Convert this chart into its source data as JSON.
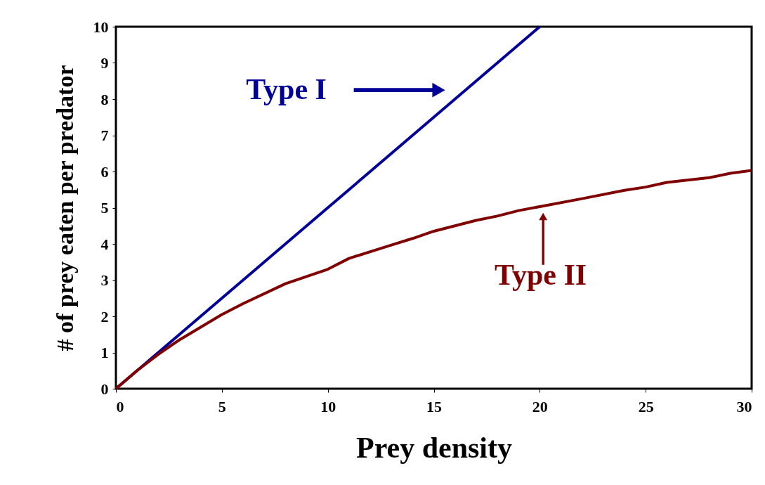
{
  "chart_data": {
    "type": "line",
    "xlabel": "Prey density",
    "ylabel": "# of prey eaten per predator",
    "xlim": [
      0,
      30
    ],
    "ylim": [
      0,
      10
    ],
    "xticks": [
      0,
      5,
      10,
      15,
      20,
      25,
      30
    ],
    "yticks": [
      0,
      1,
      2,
      3,
      4,
      5,
      6,
      7,
      8,
      9,
      10
    ],
    "grid": false,
    "legend": false,
    "marker": "none",
    "line_style": "solid",
    "series": [
      {
        "color": "#000099",
        "x": [
          0,
          1,
          2,
          3,
          5,
          10,
          15,
          20
        ],
        "values": [
          0,
          0.5,
          1,
          1.5,
          2.5,
          5,
          7.5,
          10
        ]
      },
      {
        "color": "#800000",
        "x": [
          0,
          1,
          2,
          3,
          5,
          6,
          8,
          10,
          11,
          13,
          14,
          15,
          17,
          18,
          19,
          20,
          22,
          24,
          25,
          26,
          28,
          29,
          30
        ],
        "values": [
          0,
          0.5,
          0.95,
          1.35,
          2.05,
          2.35,
          2.9,
          3.3,
          3.6,
          3.97,
          4.15,
          4.35,
          4.65,
          4.77,
          4.92,
          5.03,
          5.25,
          5.48,
          5.57,
          5.7,
          5.83,
          5.95,
          6.03
        ]
      }
    ],
    "annotations": [
      "Type I",
      "Type II"
    ]
  }
}
